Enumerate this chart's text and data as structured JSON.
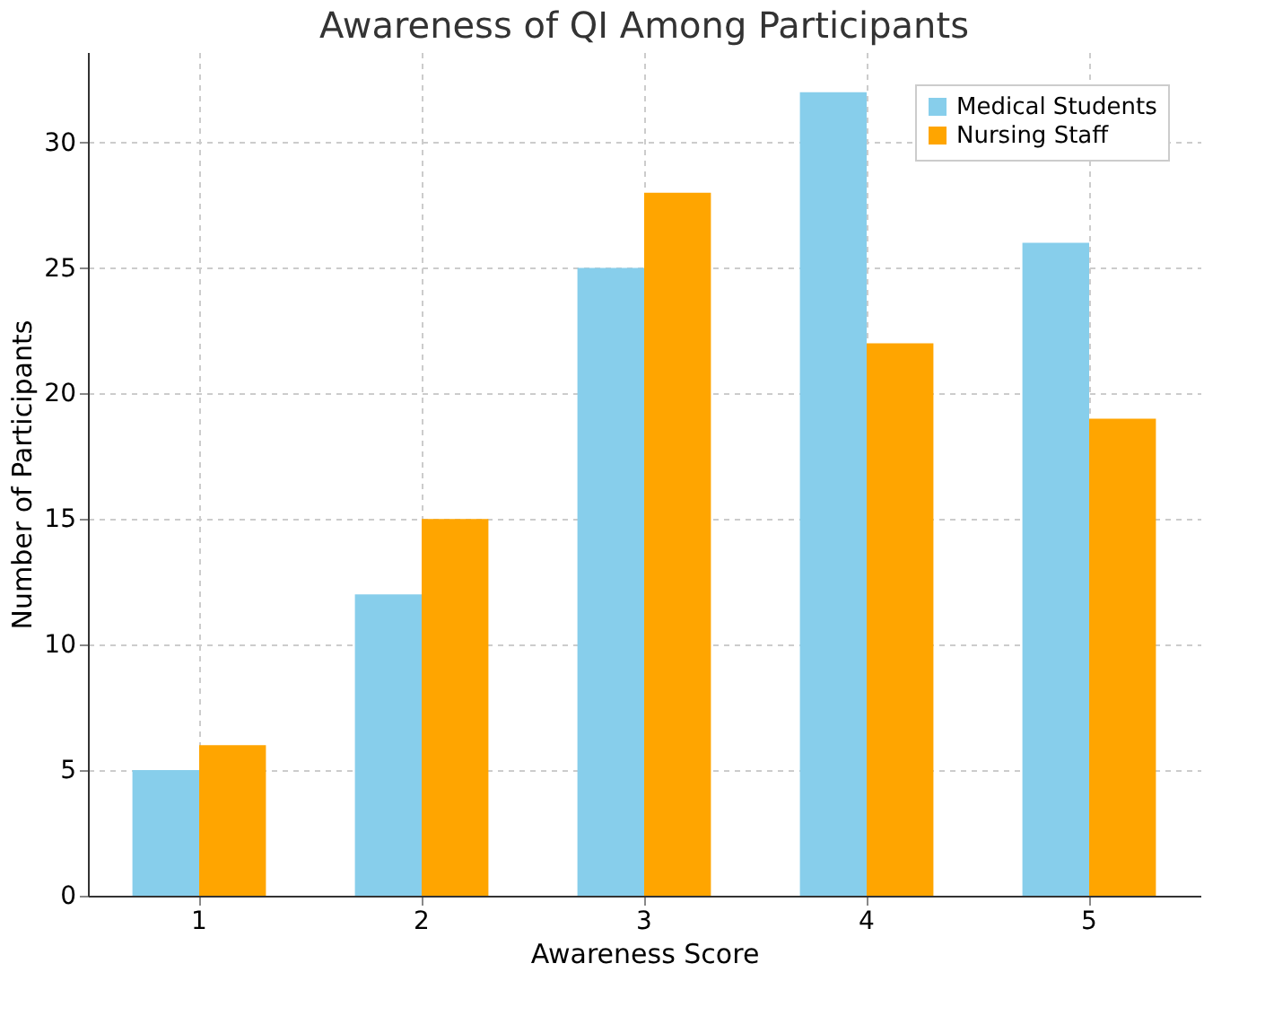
{
  "chart_data": {
    "type": "bar",
    "title": "Awareness of QI Among Participants",
    "xlabel": "Awareness Score",
    "ylabel": "Number of Participants",
    "categories": [
      "1",
      "2",
      "3",
      "4",
      "5"
    ],
    "series": [
      {
        "name": "Medical Students",
        "color": "#87ceeb",
        "values": [
          5,
          12,
          25,
          32,
          26
        ]
      },
      {
        "name": "Nursing Staff",
        "color": "#ffa500",
        "values": [
          6,
          15,
          28,
          22,
          19
        ]
      }
    ],
    "ylim": [
      0,
      33.6
    ],
    "yticks": [
      0,
      5,
      10,
      15,
      20,
      25,
      30
    ],
    "grid": true,
    "legend": "top right"
  }
}
